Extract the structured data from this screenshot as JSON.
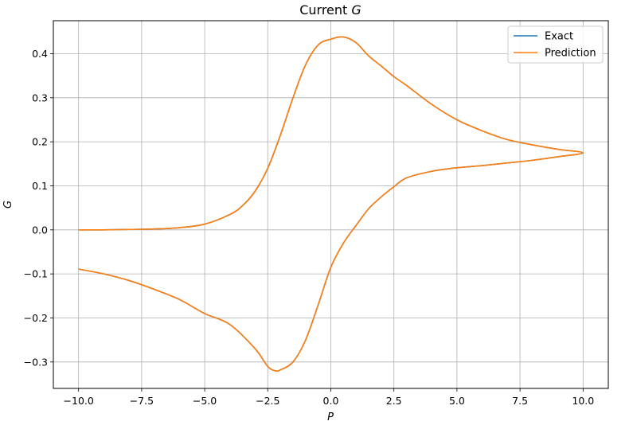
{
  "chart_data": {
    "type": "line",
    "title_prefix": "Current ",
    "title_symbol": "G",
    "xlabel": "P",
    "ylabel": "G",
    "xlim": [
      -11.0,
      11.0
    ],
    "ylim": [
      -0.36,
      0.475
    ],
    "x_ticks": [
      -10.0,
      -7.5,
      -5.0,
      -2.5,
      0.0,
      2.5,
      5.0,
      7.5,
      10.0
    ],
    "x_tick_labels": [
      "−10.0",
      "−7.5",
      "−5.0",
      "−2.5",
      "0.0",
      "2.5",
      "5.0",
      "7.5",
      "10.0"
    ],
    "y_ticks": [
      -0.3,
      -0.2,
      -0.1,
      0.0,
      0.1,
      0.2,
      0.3,
      0.4
    ],
    "y_tick_labels": [
      "−0.3",
      "−0.2",
      "−0.1",
      "0.0",
      "0.1",
      "0.2",
      "0.3",
      "0.4"
    ],
    "grid": true,
    "legend_position": "top-right",
    "series": [
      {
        "name": "Exact",
        "color": "#1f77b4",
        "x": [
          -10,
          -9,
          -8,
          -7,
          -6,
          -5,
          -4,
          -3.5,
          -3,
          -2.5,
          -2,
          -1.5,
          -1,
          -0.5,
          0,
          0.5,
          1,
          1.5,
          2,
          2.5,
          3,
          4,
          5,
          6,
          7,
          8,
          9,
          10,
          9,
          8,
          7,
          6,
          5,
          4,
          3,
          2.5,
          2,
          1.5,
          1,
          0.5,
          0,
          -0.5,
          -1,
          -1.5,
          -2,
          -2.2,
          -2.5,
          -3,
          -4,
          -5,
          -6,
          -7,
          -8,
          -9,
          -10
        ],
        "y": [
          0.0,
          0.0,
          0.001,
          0.002,
          0.005,
          0.013,
          0.035,
          0.055,
          0.088,
          0.14,
          0.215,
          0.3,
          0.375,
          0.42,
          0.433,
          0.438,
          0.425,
          0.395,
          0.372,
          0.348,
          0.328,
          0.285,
          0.25,
          0.225,
          0.205,
          0.193,
          0.183,
          0.175,
          0.166,
          0.158,
          0.152,
          0.146,
          0.141,
          0.133,
          0.118,
          0.098,
          0.075,
          0.048,
          0.01,
          -0.03,
          -0.085,
          -0.17,
          -0.25,
          -0.3,
          -0.318,
          -0.32,
          -0.31,
          -0.27,
          -0.215,
          -0.19,
          -0.158,
          -0.135,
          -0.115,
          -0.1,
          -0.089
        ]
      },
      {
        "name": "Prediction",
        "color": "#ff7f0e",
        "x": [
          -10,
          -9,
          -8,
          -7,
          -6,
          -5,
          -4,
          -3.5,
          -3,
          -2.5,
          -2,
          -1.5,
          -1,
          -0.5,
          0,
          0.5,
          1,
          1.5,
          2,
          2.5,
          3,
          4,
          5,
          6,
          7,
          8,
          9,
          10,
          9,
          8,
          7,
          6,
          5,
          4,
          3,
          2.5,
          2,
          1.5,
          1,
          0.5,
          0,
          -0.5,
          -1,
          -1.5,
          -2,
          -2.2,
          -2.5,
          -3,
          -4,
          -5,
          -6,
          -7,
          -8,
          -9,
          -10
        ],
        "y": [
          0.0,
          0.0,
          0.001,
          0.002,
          0.005,
          0.013,
          0.035,
          0.055,
          0.088,
          0.14,
          0.215,
          0.3,
          0.375,
          0.42,
          0.433,
          0.438,
          0.425,
          0.395,
          0.372,
          0.348,
          0.328,
          0.285,
          0.25,
          0.225,
          0.205,
          0.193,
          0.183,
          0.175,
          0.166,
          0.158,
          0.152,
          0.146,
          0.141,
          0.133,
          0.118,
          0.098,
          0.075,
          0.048,
          0.01,
          -0.03,
          -0.085,
          -0.17,
          -0.25,
          -0.3,
          -0.318,
          -0.32,
          -0.31,
          -0.27,
          -0.215,
          -0.19,
          -0.158,
          -0.135,
          -0.115,
          -0.1,
          -0.089
        ]
      }
    ]
  }
}
